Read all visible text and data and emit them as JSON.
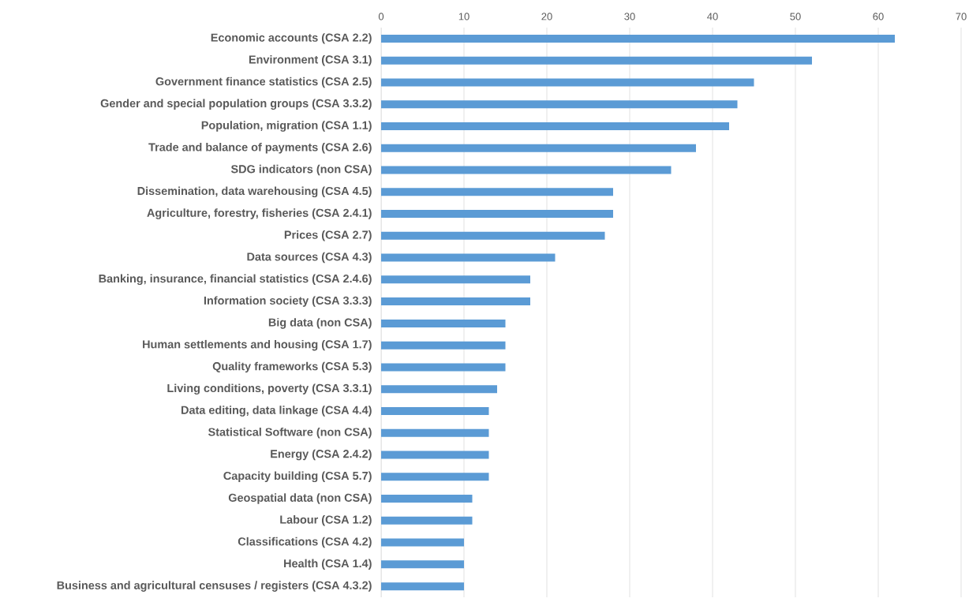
{
  "chart_data": {
    "type": "bar",
    "orientation": "horizontal",
    "categories": [
      "Economic accounts (CSA 2.2)",
      "Environment (CSA 3.1)",
      "Government finance statistics (CSA 2.5)",
      "Gender and special population groups (CSA 3.3.2)",
      "Population, migration (CSA 1.1)",
      "Trade and balance of payments (CSA 2.6)",
      "SDG indicators (non CSA)",
      "Dissemination, data warehousing (CSA 4.5)",
      "Agriculture, forestry, fisheries (CSA 2.4.1)",
      "Prices (CSA 2.7)",
      "Data sources (CSA 4.3)",
      "Banking, insurance, financial statistics (CSA 2.4.6)",
      "Information society (CSA 3.3.3)",
      "Big data (non CSA)",
      "Human settlements and housing (CSA 1.7)",
      "Quality frameworks (CSA 5.3)",
      "Living conditions, poverty (CSA 3.3.1)",
      "Data editing, data linkage (CSA 4.4)",
      "Statistical Software (non CSA)",
      "Energy (CSA 2.4.2)",
      "Capacity building (CSA 5.7)",
      "Geospatial data (non CSA)",
      "Labour (CSA 1.2)",
      "Classifications (CSA 4.2)",
      "Health (CSA 1.4)",
      "Business and agricultural censuses / registers (CSA 4.3.2)"
    ],
    "values": [
      62,
      52,
      45,
      43,
      42,
      38,
      35,
      28,
      28,
      27,
      21,
      18,
      18,
      15,
      15,
      15,
      14,
      13,
      13,
      13,
      13,
      11,
      11,
      10,
      10,
      10
    ],
    "color": "#5b9bd5",
    "xlim": [
      0,
      70
    ],
    "xticks": [
      0,
      10,
      20,
      30,
      40,
      50,
      60,
      70
    ],
    "grid": "x"
  }
}
